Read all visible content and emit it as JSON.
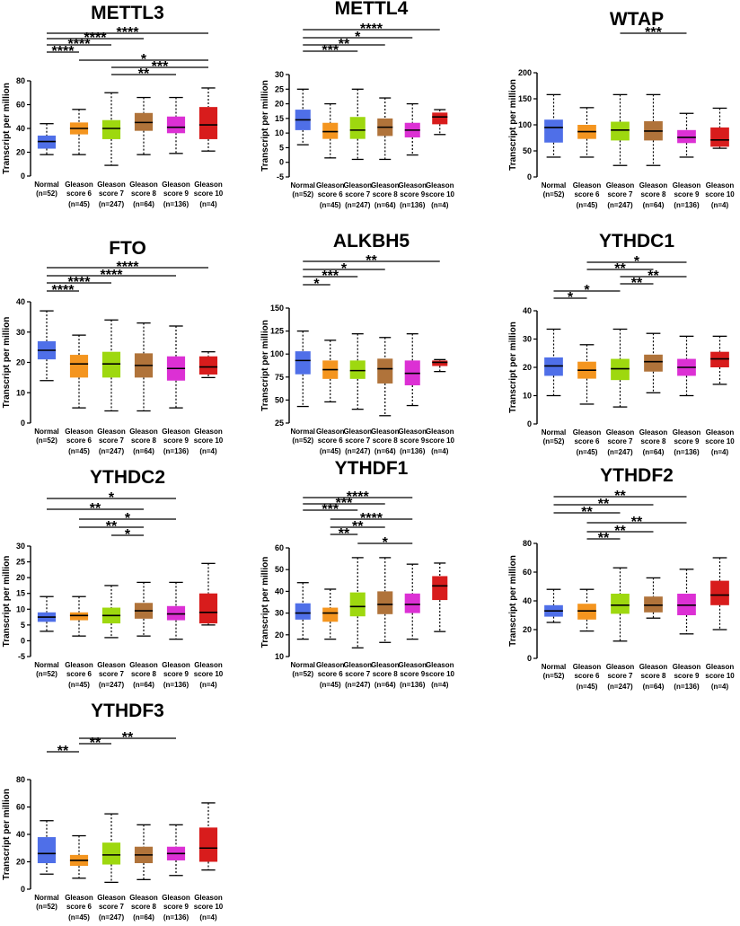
{
  "colors": [
    "#4f6fe8",
    "#f4951f",
    "#9ed80f",
    "#b0733a",
    "#dc30d4",
    "#d81c1c"
  ],
  "chart_data": [
    {
      "type": "box",
      "title": "METTL3",
      "ylabel": "Transcript per million",
      "yticks": [
        0,
        20,
        40,
        60,
        80
      ],
      "ylim": [
        0,
        80
      ],
      "categories": [
        [
          "Normal",
          "(n=52)"
        ],
        [
          "Gleason",
          "score 6",
          "(n=45)"
        ],
        [
          "Gleason",
          "score 7",
          "(n=247)"
        ],
        [
          "Gleason",
          "score 8",
          "(n=64)"
        ],
        [
          "Gleason",
          "score 9",
          "(n=136)"
        ],
        [
          "Gleason",
          "score 10",
          "(n=4)"
        ]
      ],
      "boxes": [
        {
          "min": 18,
          "q1": 23,
          "median": 29,
          "q3": 34,
          "max": 44
        },
        {
          "min": 18,
          "q1": 35,
          "median": 40,
          "q3": 45,
          "max": 56
        },
        {
          "min": 9,
          "q1": 31,
          "median": 40,
          "q3": 47,
          "max": 70
        },
        {
          "min": 18,
          "q1": 38,
          "median": 45,
          "q3": 53,
          "max": 66
        },
        {
          "min": 19,
          "q1": 36,
          "median": 41,
          "q3": 50,
          "max": 66
        },
        {
          "min": 21,
          "q1": 31,
          "median": 43,
          "q3": 58,
          "max": 74
        }
      ],
      "significance": [
        {
          "from": 0,
          "to": 5,
          "label": "****"
        },
        {
          "from": 0,
          "to": 3,
          "label": "****"
        },
        {
          "from": 0,
          "to": 2,
          "label": "****"
        },
        {
          "from": 0,
          "to": 1,
          "label": "****"
        },
        {
          "from": 1,
          "to": 5,
          "label": "*"
        },
        {
          "from": 2,
          "to": 5,
          "label": "***"
        },
        {
          "from": 2,
          "to": 4,
          "label": "**"
        }
      ]
    },
    {
      "type": "box",
      "title": "METTL4",
      "ylabel": "Transcript per million",
      "yticks": [
        -5,
        0,
        5,
        10,
        15,
        20,
        25,
        30
      ],
      "ylim": [
        -5,
        30
      ],
      "categories": [
        [
          "Normal",
          "(n=52)"
        ],
        [
          "Gleason",
          "score 6",
          "(n=45)"
        ],
        [
          "Gleason",
          "score 7",
          "(n=247)"
        ],
        [
          "Gleason",
          "score 8",
          "(n=64)"
        ],
        [
          "Gleason",
          "score 9",
          "(n=136)"
        ],
        [
          "Gleason",
          "score 10",
          "(n=4)"
        ]
      ],
      "boxes": [
        {
          "min": 6,
          "q1": 11,
          "median": 14.5,
          "q3": 18,
          "max": 25
        },
        {
          "min": 1.5,
          "q1": 8,
          "median": 10.5,
          "q3": 13.5,
          "max": 20
        },
        {
          "min": 1,
          "q1": 8,
          "median": 11,
          "q3": 15.5,
          "max": 25
        },
        {
          "min": 1,
          "q1": 9,
          "median": 12,
          "q3": 15,
          "max": 22
        },
        {
          "min": 2.5,
          "q1": 8.5,
          "median": 11,
          "q3": 13.5,
          "max": 20
        },
        {
          "min": 9.5,
          "q1": 13,
          "median": 15.5,
          "q3": 17,
          "max": 18
        }
      ],
      "significance": [
        {
          "from": 0,
          "to": 5,
          "label": "****"
        },
        {
          "from": 0,
          "to": 4,
          "label": "*"
        },
        {
          "from": 0,
          "to": 3,
          "label": "**"
        },
        {
          "from": 0,
          "to": 2,
          "label": "***"
        }
      ]
    },
    {
      "type": "box",
      "title": "WTAP",
      "ylabel": "Transcript per million",
      "yticks": [
        0,
        50,
        100,
        150,
        200
      ],
      "ylim": [
        0,
        200
      ],
      "categories": [
        [
          "Normal",
          "(n=52)"
        ],
        [
          "Gleason",
          "score 6",
          "(n=45)"
        ],
        [
          "Gleason",
          "score 7",
          "(n=247)"
        ],
        [
          "Gleason",
          "score 8",
          "(n=64)"
        ],
        [
          "Gleason",
          "score 9",
          "(n=136)"
        ],
        [
          "Gleason",
          "score 10",
          "(n=4)"
        ]
      ],
      "boxes": [
        {
          "min": 38,
          "q1": 66,
          "median": 95,
          "q3": 110,
          "max": 158
        },
        {
          "min": 38,
          "q1": 73,
          "median": 87,
          "q3": 100,
          "max": 133
        },
        {
          "min": 22,
          "q1": 70,
          "median": 90,
          "q3": 106,
          "max": 158
        },
        {
          "min": 22,
          "q1": 70,
          "median": 88,
          "q3": 107,
          "max": 158
        },
        {
          "min": 38,
          "q1": 65,
          "median": 76,
          "q3": 90,
          "max": 122
        },
        {
          "min": 55,
          "q1": 58,
          "median": 71,
          "q3": 95,
          "max": 132
        }
      ],
      "significance": [
        {
          "from": 2,
          "to": 4,
          "label": "***"
        }
      ]
    },
    {
      "type": "box",
      "title": "FTO",
      "ylabel": "Transcript per million",
      "yticks": [
        0,
        10,
        20,
        30,
        40
      ],
      "ylim": [
        0,
        40
      ],
      "categories": [
        [
          "Normal",
          "(n=52)"
        ],
        [
          "Gleason",
          "score 6",
          "(n=45)"
        ],
        [
          "Gleason",
          "score 7",
          "(n=247)"
        ],
        [
          "Gleason",
          "score 8",
          "(n=64)"
        ],
        [
          "Gleason",
          "score 9",
          "(n=136)"
        ],
        [
          "Gleason",
          "score 10",
          "(n=4)"
        ]
      ],
      "boxes": [
        {
          "min": 14,
          "q1": 21,
          "median": 24,
          "q3": 27,
          "max": 37
        },
        {
          "min": 5,
          "q1": 15,
          "median": 19.5,
          "q3": 22.5,
          "max": 29
        },
        {
          "min": 4,
          "q1": 15,
          "median": 19.5,
          "q3": 23.5,
          "max": 34
        },
        {
          "min": 4,
          "q1": 15,
          "median": 19,
          "q3": 23,
          "max": 33
        },
        {
          "min": 5,
          "q1": 14,
          "median": 18,
          "q3": 22,
          "max": 32
        },
        {
          "min": 15,
          "q1": 16,
          "median": 18.5,
          "q3": 22,
          "max": 23.5
        }
      ],
      "significance": [
        {
          "from": 0,
          "to": 5,
          "label": "****"
        },
        {
          "from": 0,
          "to": 4,
          "label": "****"
        },
        {
          "from": 0,
          "to": 2,
          "label": "****"
        },
        {
          "from": 0,
          "to": 1,
          "label": "****"
        }
      ]
    },
    {
      "type": "box",
      "title": "ALKBH5",
      "ylabel": "Transcript per million",
      "yticks": [
        25,
        50,
        75,
        100,
        125,
        150
      ],
      "ylim": [
        25,
        150
      ],
      "categories": [
        [
          "Normal",
          "(n=52)"
        ],
        [
          "Gleason",
          "score 6",
          "(n=45)"
        ],
        [
          "Gleason",
          "score 7",
          "(n=247)"
        ],
        [
          "Gleason",
          "score 8",
          "(n=64)"
        ],
        [
          "Gleason",
          "score 9",
          "(n=136)"
        ],
        [
          "Gleason",
          "score 10",
          "(n=4)"
        ]
      ],
      "boxes": [
        {
          "min": 43,
          "q1": 78,
          "median": 93,
          "q3": 103,
          "max": 125
        },
        {
          "min": 48,
          "q1": 73,
          "median": 83,
          "q3": 93,
          "max": 115
        },
        {
          "min": 40,
          "q1": 73,
          "median": 82,
          "q3": 93,
          "max": 122
        },
        {
          "min": 33,
          "q1": 68,
          "median": 84,
          "q3": 95,
          "max": 118
        },
        {
          "min": 44,
          "q1": 66,
          "median": 79,
          "q3": 93,
          "max": 122
        },
        {
          "min": 81,
          "q1": 87,
          "median": 91,
          "q3": 93,
          "max": 94
        }
      ],
      "significance": [
        {
          "from": 0,
          "to": 5,
          "label": "**"
        },
        {
          "from": 0,
          "to": 3,
          "label": "*"
        },
        {
          "from": 0,
          "to": 2,
          "label": "***"
        },
        {
          "from": 0,
          "to": 1,
          "label": "*"
        }
      ]
    },
    {
      "type": "box",
      "title": "YTHDC1",
      "ylabel": "Transcript per million",
      "yticks": [
        0,
        10,
        20,
        30,
        40
      ],
      "ylim": [
        0,
        40
      ],
      "categories": [
        [
          "Normal",
          "(n=52)"
        ],
        [
          "Gleason",
          "score 6",
          "(n=45)"
        ],
        [
          "Gleason",
          "score 7",
          "(n=247)"
        ],
        [
          "Gleason",
          "score 8",
          "(n=64)"
        ],
        [
          "Gleason",
          "score 9",
          "(n=136)"
        ],
        [
          "Gleason",
          "score 10",
          "(n=4)"
        ]
      ],
      "boxes": [
        {
          "min": 10,
          "q1": 17,
          "median": 20.5,
          "q3": 23.5,
          "max": 33.5
        },
        {
          "min": 7,
          "q1": 16,
          "median": 19,
          "q3": 22,
          "max": 28
        },
        {
          "min": 6,
          "q1": 15.5,
          "median": 19.5,
          "q3": 23,
          "max": 33.5
        },
        {
          "min": 11,
          "q1": 18.5,
          "median": 22,
          "q3": 24.5,
          "max": 32
        },
        {
          "min": 10,
          "q1": 17,
          "median": 20,
          "q3": 23,
          "max": 31
        },
        {
          "min": 14,
          "q1": 20,
          "median": 23,
          "q3": 25.5,
          "max": 31
        }
      ],
      "significance": [
        {
          "from": 1,
          "to": 4,
          "label": "*"
        },
        {
          "from": 1,
          "to": 3,
          "label": "**"
        },
        {
          "from": 2,
          "to": 4,
          "label": "**"
        },
        {
          "from": 2,
          "to": 3,
          "label": "**"
        },
        {
          "from": 0,
          "to": 2,
          "label": "*"
        },
        {
          "from": 0,
          "to": 1,
          "label": "*"
        }
      ]
    },
    {
      "type": "box",
      "title": "YTHDC2",
      "ylabel": "Transcript per million",
      "yticks": [
        -5,
        0,
        5,
        10,
        15,
        20,
        25,
        30
      ],
      "ylim": [
        -5,
        30
      ],
      "categories": [
        [
          "Normal",
          "(n=52)"
        ],
        [
          "Gleason",
          "score 6",
          "(n=45)"
        ],
        [
          "Gleason",
          "score 7",
          "(n=247)"
        ],
        [
          "Gleason",
          "score 8",
          "(n=64)"
        ],
        [
          "Gleason",
          "score 9",
          "(n=136)"
        ],
        [
          "Gleason",
          "score 10",
          "(n=4)"
        ]
      ],
      "boxes": [
        {
          "min": 3,
          "q1": 6,
          "median": 7.5,
          "q3": 9,
          "max": 14
        },
        {
          "min": 1.5,
          "q1": 6.5,
          "median": 8,
          "q3": 9,
          "max": 14
        },
        {
          "min": 1,
          "q1": 5.5,
          "median": 8,
          "q3": 10.5,
          "max": 17.5
        },
        {
          "min": 1.5,
          "q1": 7,
          "median": 9.5,
          "q3": 12,
          "max": 18.5
        },
        {
          "min": 0.5,
          "q1": 6.5,
          "median": 8.5,
          "q3": 11,
          "max": 18.5
        },
        {
          "min": 5,
          "q1": 5.5,
          "median": 9,
          "q3": 15,
          "max": 24.5
        }
      ],
      "significance": [
        {
          "from": 0,
          "to": 4,
          "label": "*"
        },
        {
          "from": 0,
          "to": 3,
          "label": "**"
        },
        {
          "from": 1,
          "to": 4,
          "label": "*"
        },
        {
          "from": 1,
          "to": 3,
          "label": "**"
        },
        {
          "from": 2,
          "to": 3,
          "label": "*"
        }
      ]
    },
    {
      "type": "box",
      "title": "YTHDF1",
      "ylabel": "Transcript per million",
      "yticks": [
        10,
        20,
        30,
        40,
        50,
        60
      ],
      "ylim": [
        10,
        60
      ],
      "categories": [
        [
          "Normal",
          "(n=52)"
        ],
        [
          "Gleason",
          "score 6",
          "(n=45)"
        ],
        [
          "Gleason",
          "score 7",
          "(n=247)"
        ],
        [
          "Gleason",
          "score 8",
          "(n=64)"
        ],
        [
          "Gleason",
          "score 9",
          "(n=136)"
        ],
        [
          "Gleason",
          "score 10",
          "(n=4)"
        ]
      ],
      "boxes": [
        {
          "min": 18,
          "q1": 27,
          "median": 30,
          "q3": 34.5,
          "max": 44
        },
        {
          "min": 18,
          "q1": 26,
          "median": 30,
          "q3": 32.5,
          "max": 41
        },
        {
          "min": 14,
          "q1": 28.5,
          "median": 33,
          "q3": 39.5,
          "max": 55.5
        },
        {
          "min": 16.5,
          "q1": 29.5,
          "median": 34,
          "q3": 40,
          "max": 55.5
        },
        {
          "min": 18,
          "q1": 30,
          "median": 34,
          "q3": 39,
          "max": 52.5
        },
        {
          "min": 21.5,
          "q1": 36,
          "median": 42.5,
          "q3": 47,
          "max": 53
        }
      ],
      "significance": [
        {
          "from": 0,
          "to": 4,
          "label": "****"
        },
        {
          "from": 0,
          "to": 3,
          "label": "***"
        },
        {
          "from": 0,
          "to": 2,
          "label": "***"
        },
        {
          "from": 1,
          "to": 4,
          "label": "****"
        },
        {
          "from": 1,
          "to": 3,
          "label": "**"
        },
        {
          "from": 1,
          "to": 2,
          "label": "**"
        },
        {
          "from": 2,
          "to": 4,
          "label": "*"
        }
      ]
    },
    {
      "type": "box",
      "title": "YTHDF2",
      "ylabel": "Transcript per million",
      "yticks": [
        0,
        20,
        40,
        60,
        80
      ],
      "ylim": [
        0,
        80
      ],
      "categories": [
        [
          "Normal",
          "(n=52)"
        ],
        [
          "Gleason",
          "score 6",
          "(n=45)"
        ],
        [
          "Gleason",
          "score 7",
          "(n=247)"
        ],
        [
          "Gleason",
          "score 8",
          "(n=64)"
        ],
        [
          "Gleason",
          "score 9",
          "(n=136)"
        ],
        [
          "Gleason",
          "score 10",
          "(n=4)"
        ]
      ],
      "boxes": [
        {
          "min": 25,
          "q1": 29,
          "median": 33,
          "q3": 37,
          "max": 48
        },
        {
          "min": 19,
          "q1": 27,
          "median": 33,
          "q3": 38,
          "max": 48
        },
        {
          "min": 12,
          "q1": 31,
          "median": 37,
          "q3": 45,
          "max": 63
        },
        {
          "min": 28,
          "q1": 32,
          "median": 37,
          "q3": 43,
          "max": 56
        },
        {
          "min": 17,
          "q1": 30,
          "median": 37,
          "q3": 45,
          "max": 62
        },
        {
          "min": 20,
          "q1": 37,
          "median": 44,
          "q3": 54,
          "max": 70
        }
      ],
      "significance": [
        {
          "from": 0,
          "to": 4,
          "label": "**"
        },
        {
          "from": 0,
          "to": 3,
          "label": "**"
        },
        {
          "from": 0,
          "to": 2,
          "label": "**"
        },
        {
          "from": 1,
          "to": 4,
          "label": "**"
        },
        {
          "from": 1,
          "to": 3,
          "label": "**"
        },
        {
          "from": 1,
          "to": 2,
          "label": "**"
        }
      ]
    },
    {
      "type": "box",
      "title": "YTHDF3",
      "ylabel": "Transcript per million",
      "yticks": [
        0,
        20,
        40,
        60,
        80
      ],
      "ylim": [
        0,
        80
      ],
      "categories": [
        [
          "Normal",
          "(n=52)"
        ],
        [
          "Gleason",
          "score 6",
          "(n=45)"
        ],
        [
          "Gleason",
          "score 7",
          "(n=247)"
        ],
        [
          "Gleason",
          "score 8",
          "(n=64)"
        ],
        [
          "Gleason",
          "score 9",
          "(n=136)"
        ],
        [
          "Gleason",
          "score 10",
          "(n=4)"
        ]
      ],
      "boxes": [
        {
          "min": 11,
          "q1": 19,
          "median": 26,
          "q3": 38,
          "max": 50
        },
        {
          "min": 8,
          "q1": 17,
          "median": 21,
          "q3": 25,
          "max": 39
        },
        {
          "min": 5,
          "q1": 18,
          "median": 25,
          "q3": 34,
          "max": 55
        },
        {
          "min": 7,
          "q1": 19,
          "median": 25,
          "q3": 31,
          "max": 47
        },
        {
          "min": 10,
          "q1": 21,
          "median": 26,
          "q3": 31,
          "max": 47
        },
        {
          "min": 14,
          "q1": 20,
          "median": 30,
          "q3": 45,
          "max": 63
        }
      ],
      "significance": [
        {
          "from": 1,
          "to": 4,
          "label": "**"
        },
        {
          "from": 1,
          "to": 2,
          "label": "**"
        },
        {
          "from": 0,
          "to": 1,
          "label": "**"
        }
      ]
    }
  ]
}
